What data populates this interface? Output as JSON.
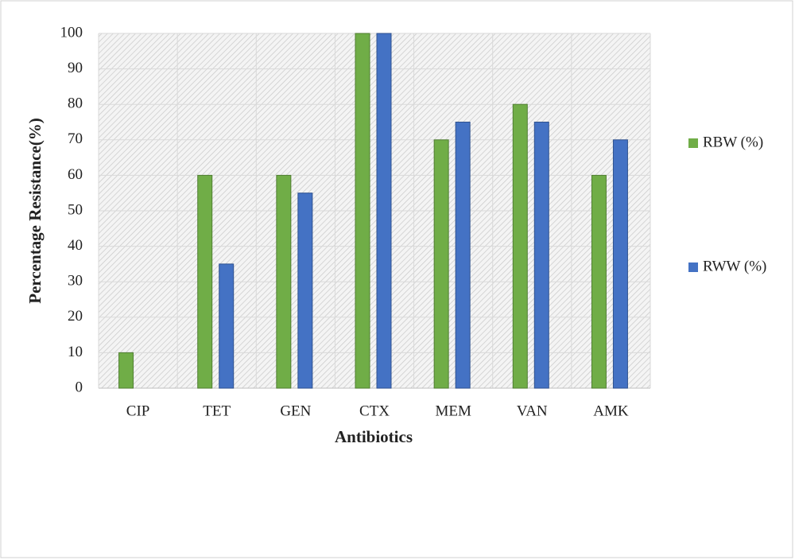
{
  "chart_data": {
    "type": "bar",
    "x_label": "Antibiotics",
    "y_label": "Percentage Resistance(%)",
    "categories": [
      "CIP",
      "TET",
      "GEN",
      "CTX",
      "MEM",
      "VAN",
      "AMK"
    ],
    "series": [
      {
        "name": "RBW (%)",
        "color": "#70ad47",
        "values": [
          10,
          60,
          60,
          100,
          70,
          80,
          60
        ]
      },
      {
        "name": "RWW (%)",
        "color": "#4472c4",
        "values": [
          0,
          35,
          55,
          100,
          75,
          75,
          70
        ]
      }
    ],
    "ylim": [
      0,
      100
    ],
    "yticks": [
      0,
      10,
      20,
      30,
      40,
      50,
      60,
      70,
      80,
      90,
      100
    ],
    "grid": true,
    "legend": "right"
  }
}
